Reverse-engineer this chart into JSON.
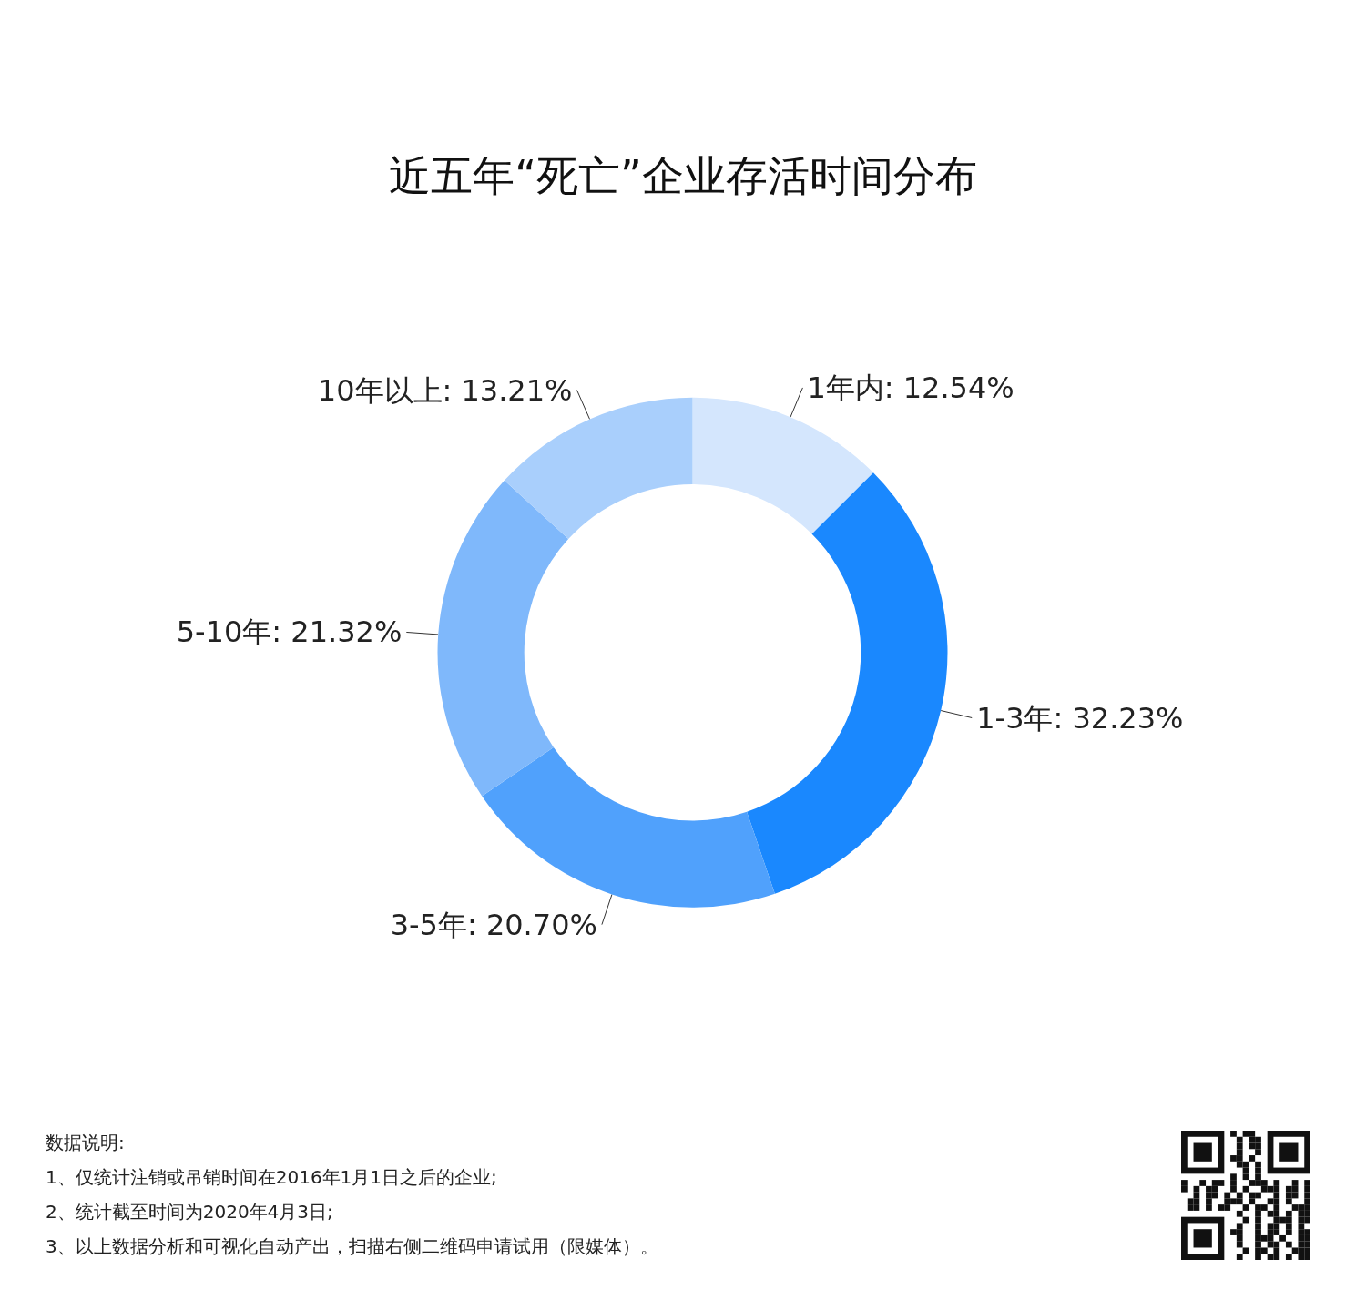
{
  "chart_data": {
    "type": "donut",
    "title": "近五年“死亡”企业存活时间分布",
    "categories": [
      "1年内",
      "1-3年",
      "3-5年",
      "5-10年",
      "10年以上"
    ],
    "values": [
      12.54,
      32.23,
      20.7,
      21.32,
      13.21
    ],
    "value_labels": [
      "12.54%",
      "32.23%",
      "20.70%",
      "21.32%",
      "13.21%"
    ],
    "colors": [
      "#d4e6fd",
      "#1a88fe",
      "#50a1fc",
      "#7fb8fb",
      "#a9cffc"
    ],
    "annotations": [
      "数据说明:",
      "1、仅统计注销或吊销时间在2016年1月1日之后的企业;",
      "2、统计截至时间为2020年4月3日;",
      "3、以上数据分析和可视化自动产出，扫描右侧二维码申请试用（限媒体）。"
    ]
  }
}
